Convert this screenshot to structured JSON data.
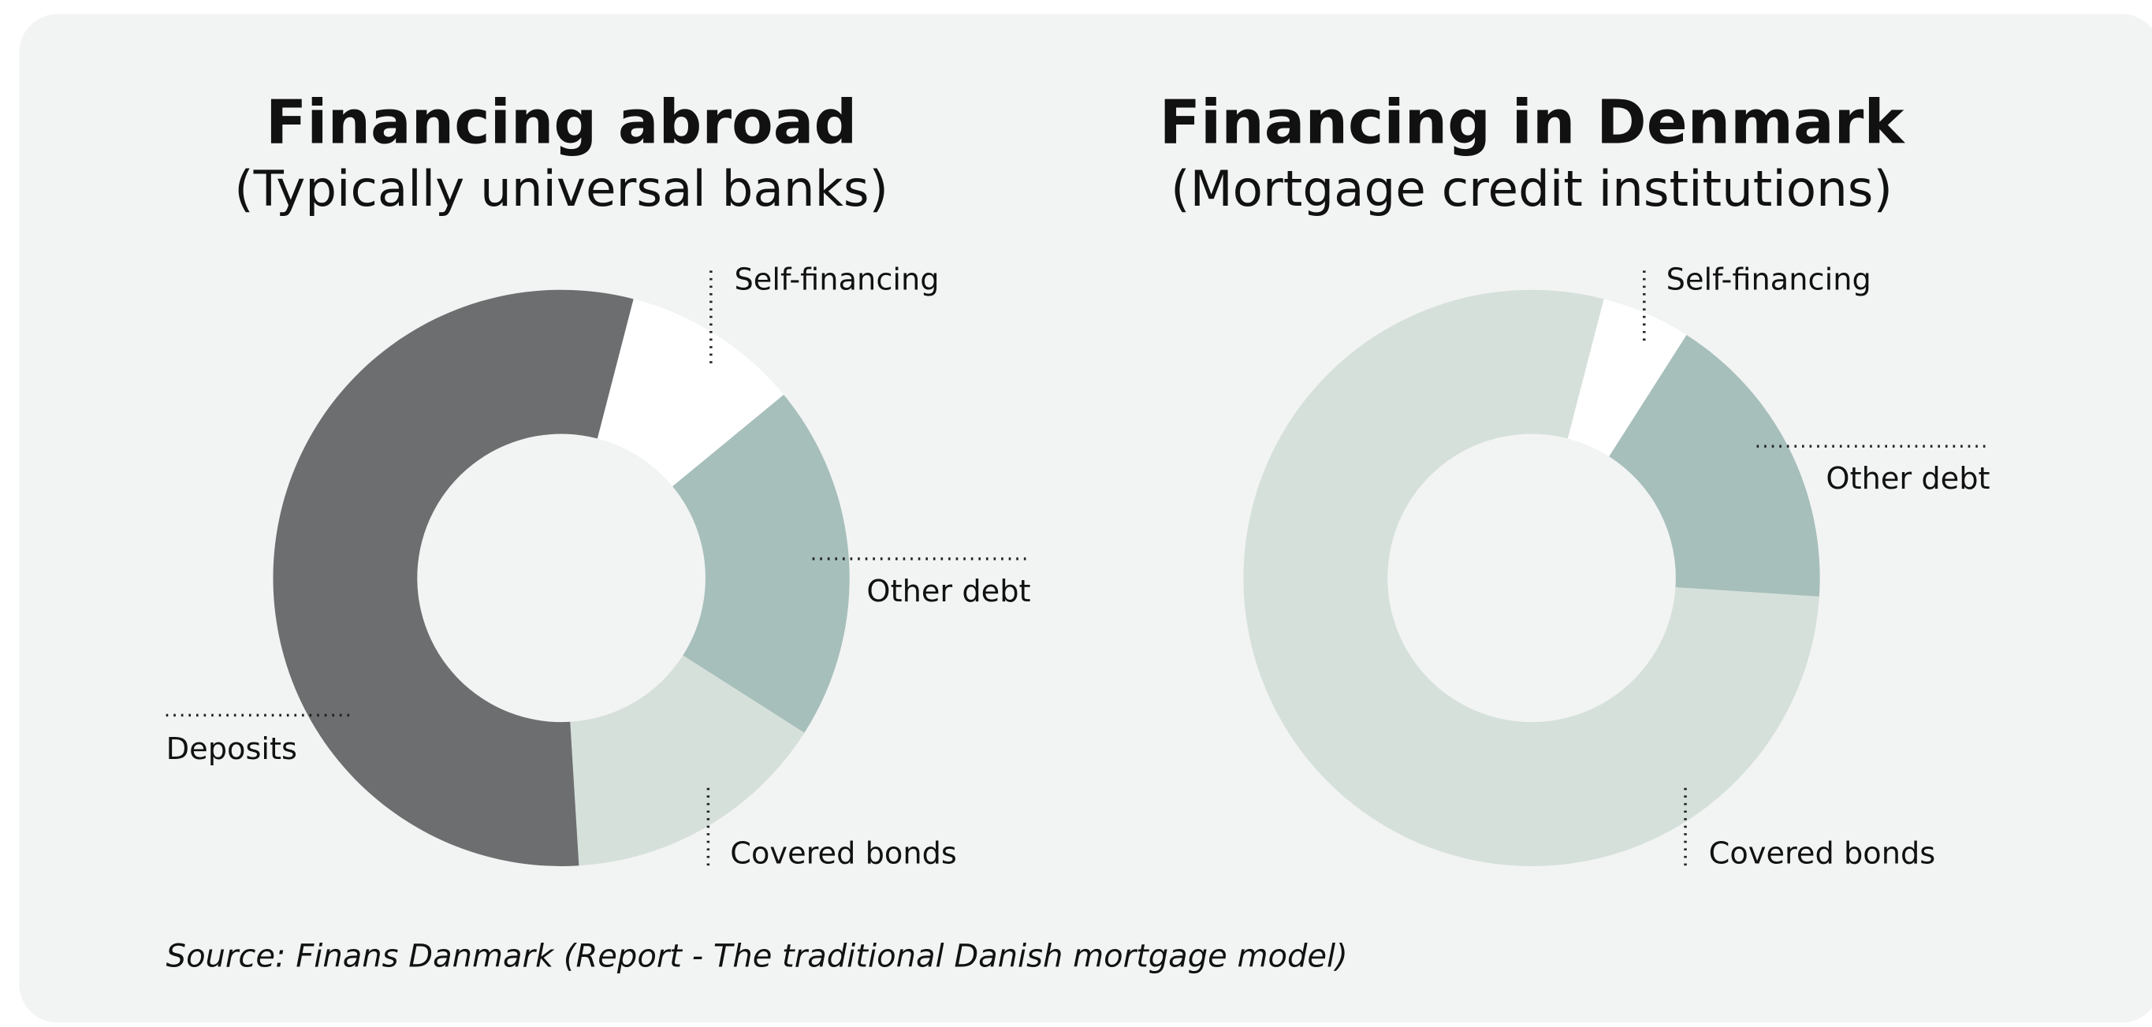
{
  "chart_data": [
    {
      "type": "pie",
      "title": "Financing abroad",
      "subtitle": "(Typically universal banks)",
      "categories": [
        "Self-financing",
        "Other debt",
        "Covered bonds",
        "Deposits"
      ],
      "values": [
        10,
        20,
        15,
        55
      ],
      "colors": [
        "#ffffff",
        "#a7bfbb",
        "#d6e0da",
        "#6d6e70"
      ]
    },
    {
      "type": "pie",
      "title": "Financing in Denmark",
      "subtitle": "(Mortgage credit institutions)",
      "categories": [
        "Self-financing",
        "Other debt",
        "Covered bonds"
      ],
      "values": [
        5,
        17,
        78
      ],
      "colors": [
        "#ffffff",
        "#a7bfbb",
        "#d6e0da"
      ]
    }
  ],
  "source": "Source: Finans Danmark (Report - The traditional Danish mortgage model)"
}
